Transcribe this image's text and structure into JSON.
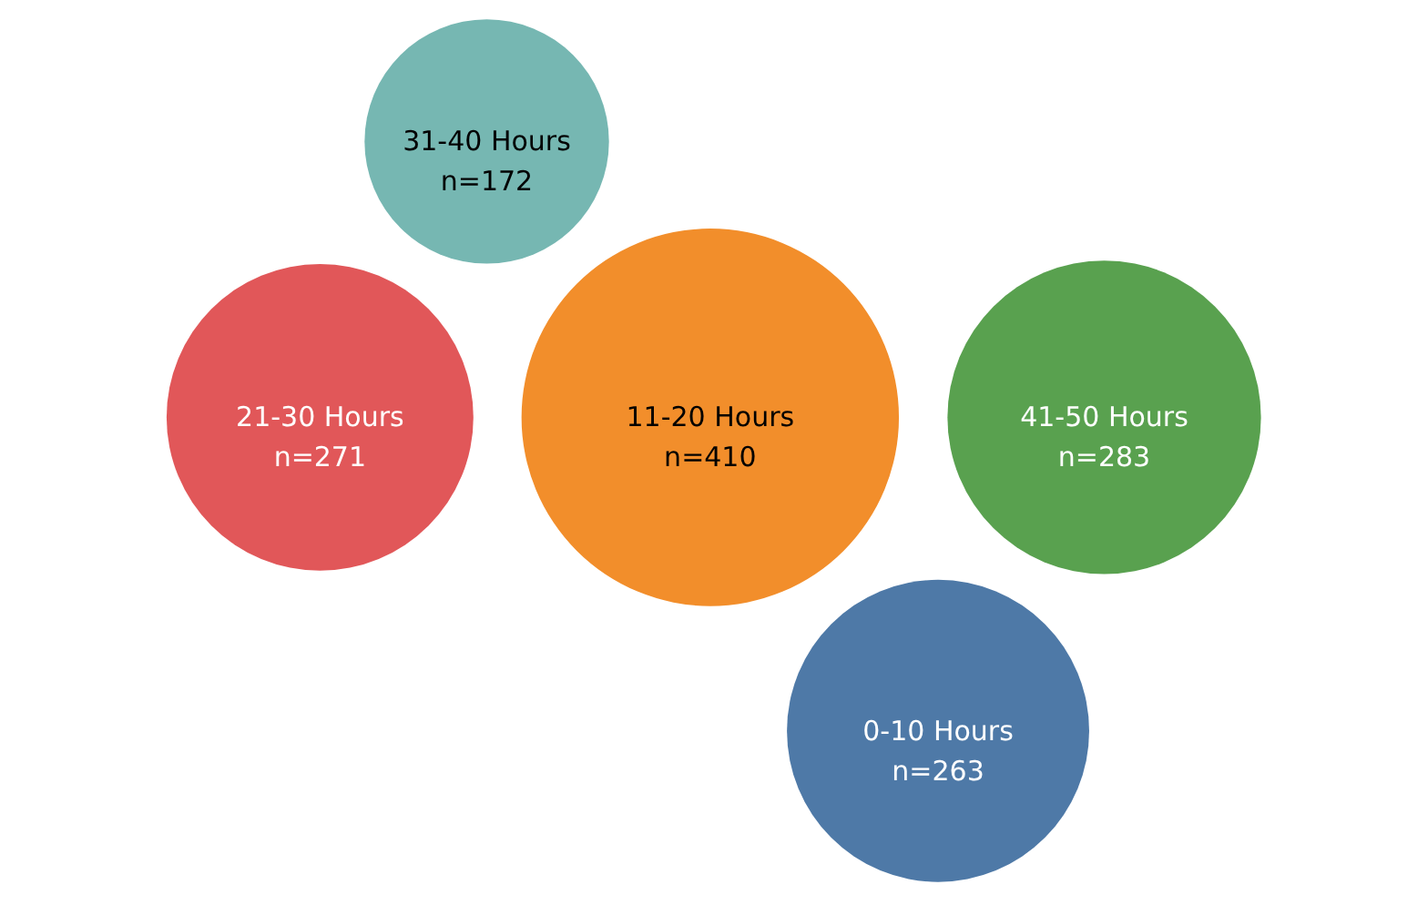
{
  "chart_data": {
    "type": "other",
    "categories": [
      "11-20 Hours",
      "41-50 Hours",
      "21-30 Hours",
      "0-10 Hours",
      "31-40 Hours"
    ],
    "values": [
      410,
      283,
      271,
      263,
      172
    ],
    "value_labels": [
      "n=410",
      "n=283",
      "n=271",
      "n=263",
      "n=172"
    ],
    "colors": [
      "#f28e2b",
      "#59a14f",
      "#e15759",
      "#4e79a7",
      "#76b7b2"
    ],
    "data_labels": true
  }
}
